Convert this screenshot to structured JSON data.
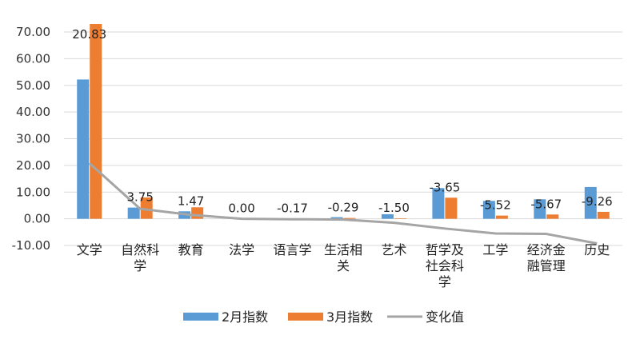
{
  "chart_data": {
    "type": "bar",
    "categories": [
      [
        "文学"
      ],
      [
        "自然科",
        "学"
      ],
      [
        "教育"
      ],
      [
        "法学"
      ],
      [
        "语言学"
      ],
      [
        "生活相",
        "关"
      ],
      [
        "艺术"
      ],
      [
        "哲学及",
        "社会科",
        "学"
      ],
      [
        "工学"
      ],
      [
        "经济金",
        "融管理"
      ],
      [
        "历史"
      ]
    ],
    "series": [
      {
        "name": "2月指数",
        "type": "bar",
        "color": "#5B9BD5",
        "values": [
          52.2,
          4.2,
          2.8,
          0.1,
          0.1,
          0.6,
          1.7,
          11.5,
          6.7,
          7.3,
          11.9
        ]
      },
      {
        "name": "3月指数",
        "type": "bar",
        "color": "#ED7D31",
        "values": [
          73.0,
          8.0,
          4.3,
          0.1,
          0.0,
          0.3,
          0.2,
          7.9,
          1.2,
          1.6,
          2.6
        ]
      },
      {
        "name": "变化值",
        "type": "line",
        "color": "#A5A5A5",
        "values": [
          20.83,
          3.75,
          1.47,
          0.0,
          -0.17,
          -0.29,
          -1.5,
          -3.65,
          -5.52,
          -5.67,
          -9.26
        ],
        "labels": [
          "20.83",
          "3.75",
          "1.47",
          "0.00",
          "-0.17",
          "-0.29",
          "-1.50",
          "-3.65",
          "-5.52",
          "-5.67",
          "-9.26"
        ]
      }
    ],
    "ylim": [
      -10,
      70
    ],
    "yticks": [
      "-10.00",
      "0.00",
      "10.00",
      "20.00",
      "30.00",
      "40.00",
      "50.00",
      "60.00",
      "70.00"
    ],
    "grid": true,
    "legend": "bottom"
  }
}
